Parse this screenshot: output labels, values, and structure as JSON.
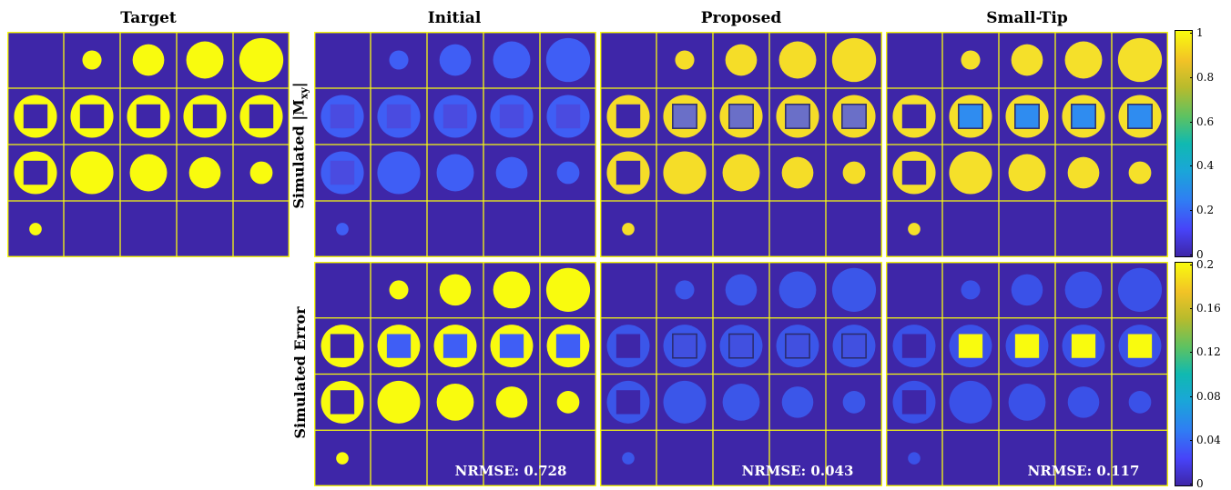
{
  "columns": [
    {
      "title": "Target"
    },
    {
      "title": "Initial"
    },
    {
      "title": "Proposed"
    },
    {
      "title": "Small-Tip"
    }
  ],
  "row_labels": {
    "magnitude_main": "Simulated |M",
    "magnitude_sub": "xy",
    "magnitude_close": "|",
    "error": "Simulated Error"
  },
  "nrmse": {
    "initial": "NRMSE: 0.728",
    "proposed": "NRMSE: 0.043",
    "small_tip": "NRMSE: 0.117"
  },
  "colorbar_magnitude": {
    "ticks": [
      "1",
      "0.8",
      "0.6",
      "0.4",
      "0.2",
      "0"
    ],
    "range": [
      0,
      1
    ]
  },
  "colorbar_error": {
    "ticks": [
      "0.2",
      "0.16",
      "0.12",
      "0.08",
      "0.04",
      "0"
    ],
    "range": [
      0,
      0.2
    ]
  },
  "colors": {
    "background": "#3e26a8",
    "grid": "#f9fb0e",
    "target": "#f9fb0e",
    "initial_mag": "#3f5ef5",
    "initial_mag_inner": "#4a4be0",
    "proposed_mag": "#f5dd28",
    "smalltip_mag": "#f5e02a",
    "smalltip_inner": "#2f8cf0",
    "proposed_err": "#3b5cf0",
    "smalltip_err": "#3a56ee"
  },
  "grid_layout": {
    "rows": 4,
    "cols": 5,
    "cells": [
      [
        {
          "shape": "none"
        },
        {
          "shape": "circle",
          "size": 0.34
        },
        {
          "shape": "circle",
          "size": 0.56
        },
        {
          "shape": "circle",
          "size": 0.66
        },
        {
          "shape": "circle",
          "size": 0.78
        }
      ],
      [
        {
          "shape": "ring",
          "size": 0.76
        },
        {
          "shape": "ring",
          "size": 0.76
        },
        {
          "shape": "ring",
          "size": 0.76
        },
        {
          "shape": "ring",
          "size": 0.76
        },
        {
          "shape": "ring",
          "size": 0.76
        }
      ],
      [
        {
          "shape": "ring",
          "size": 0.76
        },
        {
          "shape": "circle",
          "size": 0.76
        },
        {
          "shape": "circle",
          "size": 0.66
        },
        {
          "shape": "circle",
          "size": 0.56
        },
        {
          "shape": "circle",
          "size": 0.4
        }
      ],
      [
        {
          "shape": "circle",
          "size": 0.22
        },
        {
          "shape": "none"
        },
        {
          "shape": "none"
        },
        {
          "shape": "none"
        },
        {
          "shape": "none"
        }
      ]
    ]
  }
}
